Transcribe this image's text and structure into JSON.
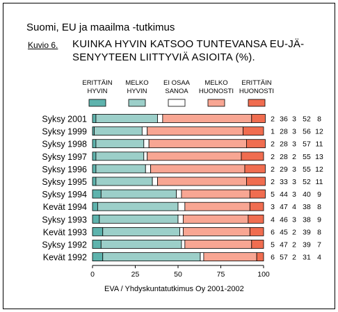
{
  "header": {
    "supertitle": "Suomi, EU ja maailma -tutkimus",
    "figure_label": "Kuvio 6.",
    "title_line1": "KUINKA HYVIN KATSOO TUNTEVANSA EU-JÄ-",
    "title_line2": "SENYYTEEN LIITTYVIÄ ASIOITA (%)."
  },
  "source": "EVA / Yhdyskuntatutkimus Oy 2001-2002",
  "chart_data": {
    "type": "bar",
    "orientation": "horizontal",
    "stacked": true,
    "title": "KUINKA HYVIN KATSOO TUNTEVANSA EU-JÄSENYYTEEN LIITTYVIÄ ASIOITA (%).",
    "xlim": [
      0,
      100
    ],
    "xticks": [
      "0",
      "25",
      "50",
      "75",
      "100"
    ],
    "legend_position": "top",
    "categories": [
      "Syksy 2001",
      "Syksy 1999",
      "Syksy 1998",
      "Syksy 1997",
      "Syksy 1996",
      "Syksy 1995",
      "Syksy 1994",
      "Kevät 1994",
      "Syksy 1993",
      "Kevät 1993",
      "Syksy 1992",
      "Kevät 1992"
    ],
    "series": [
      {
        "name": "ERITTÄIN HYVIN",
        "label_lines": [
          "ERITTÄIN",
          "HYVIN"
        ],
        "color": "#5eb3ad",
        "values": [
          2,
          1,
          2,
          2,
          2,
          2,
          5,
          3,
          4,
          6,
          5,
          6
        ]
      },
      {
        "name": "MELKO HYVIN",
        "label_lines": [
          "MELKO",
          "HYVIN"
        ],
        "color": "#9ccfc9",
        "values": [
          36,
          28,
          28,
          28,
          29,
          33,
          44,
          47,
          46,
          45,
          47,
          57
        ]
      },
      {
        "name": "EI OSAA SANOA",
        "label_lines": [
          "EI OSAA",
          "SANOA"
        ],
        "color": "#ffffff",
        "values": [
          3,
          3,
          3,
          2,
          3,
          3,
          3,
          4,
          3,
          2,
          2,
          2
        ]
      },
      {
        "name": "MELKO HUONOSTI",
        "label_lines": [
          "MELKO",
          "HUONOSTI"
        ],
        "color": "#f8a693",
        "values": [
          52,
          56,
          57,
          55,
          55,
          52,
          40,
          38,
          38,
          39,
          39,
          31
        ]
      },
      {
        "name": "ERITTÄIN HUONOSTI",
        "label_lines": [
          "ERITTÄIN",
          "HUONOSTI"
        ],
        "color": "#f06d50",
        "values": [
          8,
          12,
          11,
          13,
          12,
          11,
          9,
          8,
          9,
          8,
          7,
          4
        ]
      }
    ]
  }
}
